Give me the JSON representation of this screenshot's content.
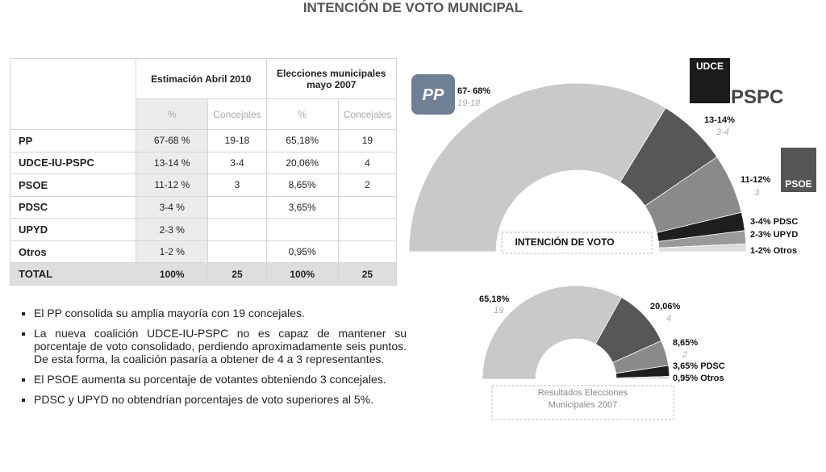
{
  "title": "INTENCIÓN DE VOTO MUNICIPAL",
  "table": {
    "header": [
      "Estimación Abril 2010",
      "Elecciones municipales mayo 2007"
    ],
    "subheader": [
      "%",
      "Concejales",
      "%",
      "Concejales"
    ],
    "rows": [
      [
        "PP",
        "67-68 %",
        "19-18",
        "65,18%",
        "19"
      ],
      [
        "UDCE-IU-PSPC",
        "13-14 %",
        "3-4",
        "20,06%",
        "4"
      ],
      [
        "PSOE",
        "11-12 %",
        "3",
        "8,65%",
        "2"
      ],
      [
        "PDSC",
        "3-4 %",
        null,
        "3,65%",
        null
      ],
      [
        "UPYD",
        "2-3 %",
        null,
        null,
        null
      ],
      [
        "Otros",
        "1-2 %",
        null,
        "0,95%",
        null
      ]
    ],
    "total": [
      "TOTAL",
      "100%",
      "25",
      "100%",
      "25"
    ]
  },
  "bullets": [
    "El PP consolida su amplia mayoría con 19 concejales.",
    "La nueva coalición UDCE-IU-PSPC no es capaz de mantener su porcentaje de voto consolidado, perdiendo aproximadamente seis puntos. De esta forma, la coalición pasaría a obtener de 4 a 3 representantes.",
    "El PSOE aumenta su porcentaje de votantes obteniendo 3 concejales.",
    "PDSC y UPYD no obtendrían porcentajes de voto superiores al 5%."
  ],
  "logos": [
    "PP",
    "UDCE",
    "PSPC",
    "PSOE"
  ],
  "chart_data": [
    {
      "type": "semi-donut",
      "center_label": "INTENCIÓN DE VOTO",
      "values": [
        67.5,
        13.5,
        11.5,
        3.5,
        2.5,
        1.5
      ],
      "value_labels": [
        "67- 68%",
        "13-14%",
        "11-12%",
        "3-4% PDSC",
        "2-3% UPYD",
        "1-2% Otros"
      ],
      "seat_labels": [
        "19-18",
        "3-4",
        "3",
        null,
        null,
        null
      ],
      "colors": [
        "#c9c9c9",
        "#575757",
        "#8a8a8a",
        "#1e1e1e",
        "#9a9a9a",
        "#dcdcdc"
      ]
    },
    {
      "type": "semi-donut",
      "center_label": "Resultados Elecciones Municipales 2007",
      "values": [
        65.18,
        20.06,
        8.65,
        3.65,
        0.95
      ],
      "value_labels": [
        "65,18%",
        "20,06%",
        "8,65%",
        "3,65% PDSC",
        "0,95% Otros"
      ],
      "seat_labels": [
        "19",
        "4",
        "2",
        null,
        null
      ],
      "colors": [
        "#c9c9c9",
        "#575757",
        "#8a8a8a",
        "#1e1e1e",
        "#dcdcdc"
      ]
    }
  ]
}
